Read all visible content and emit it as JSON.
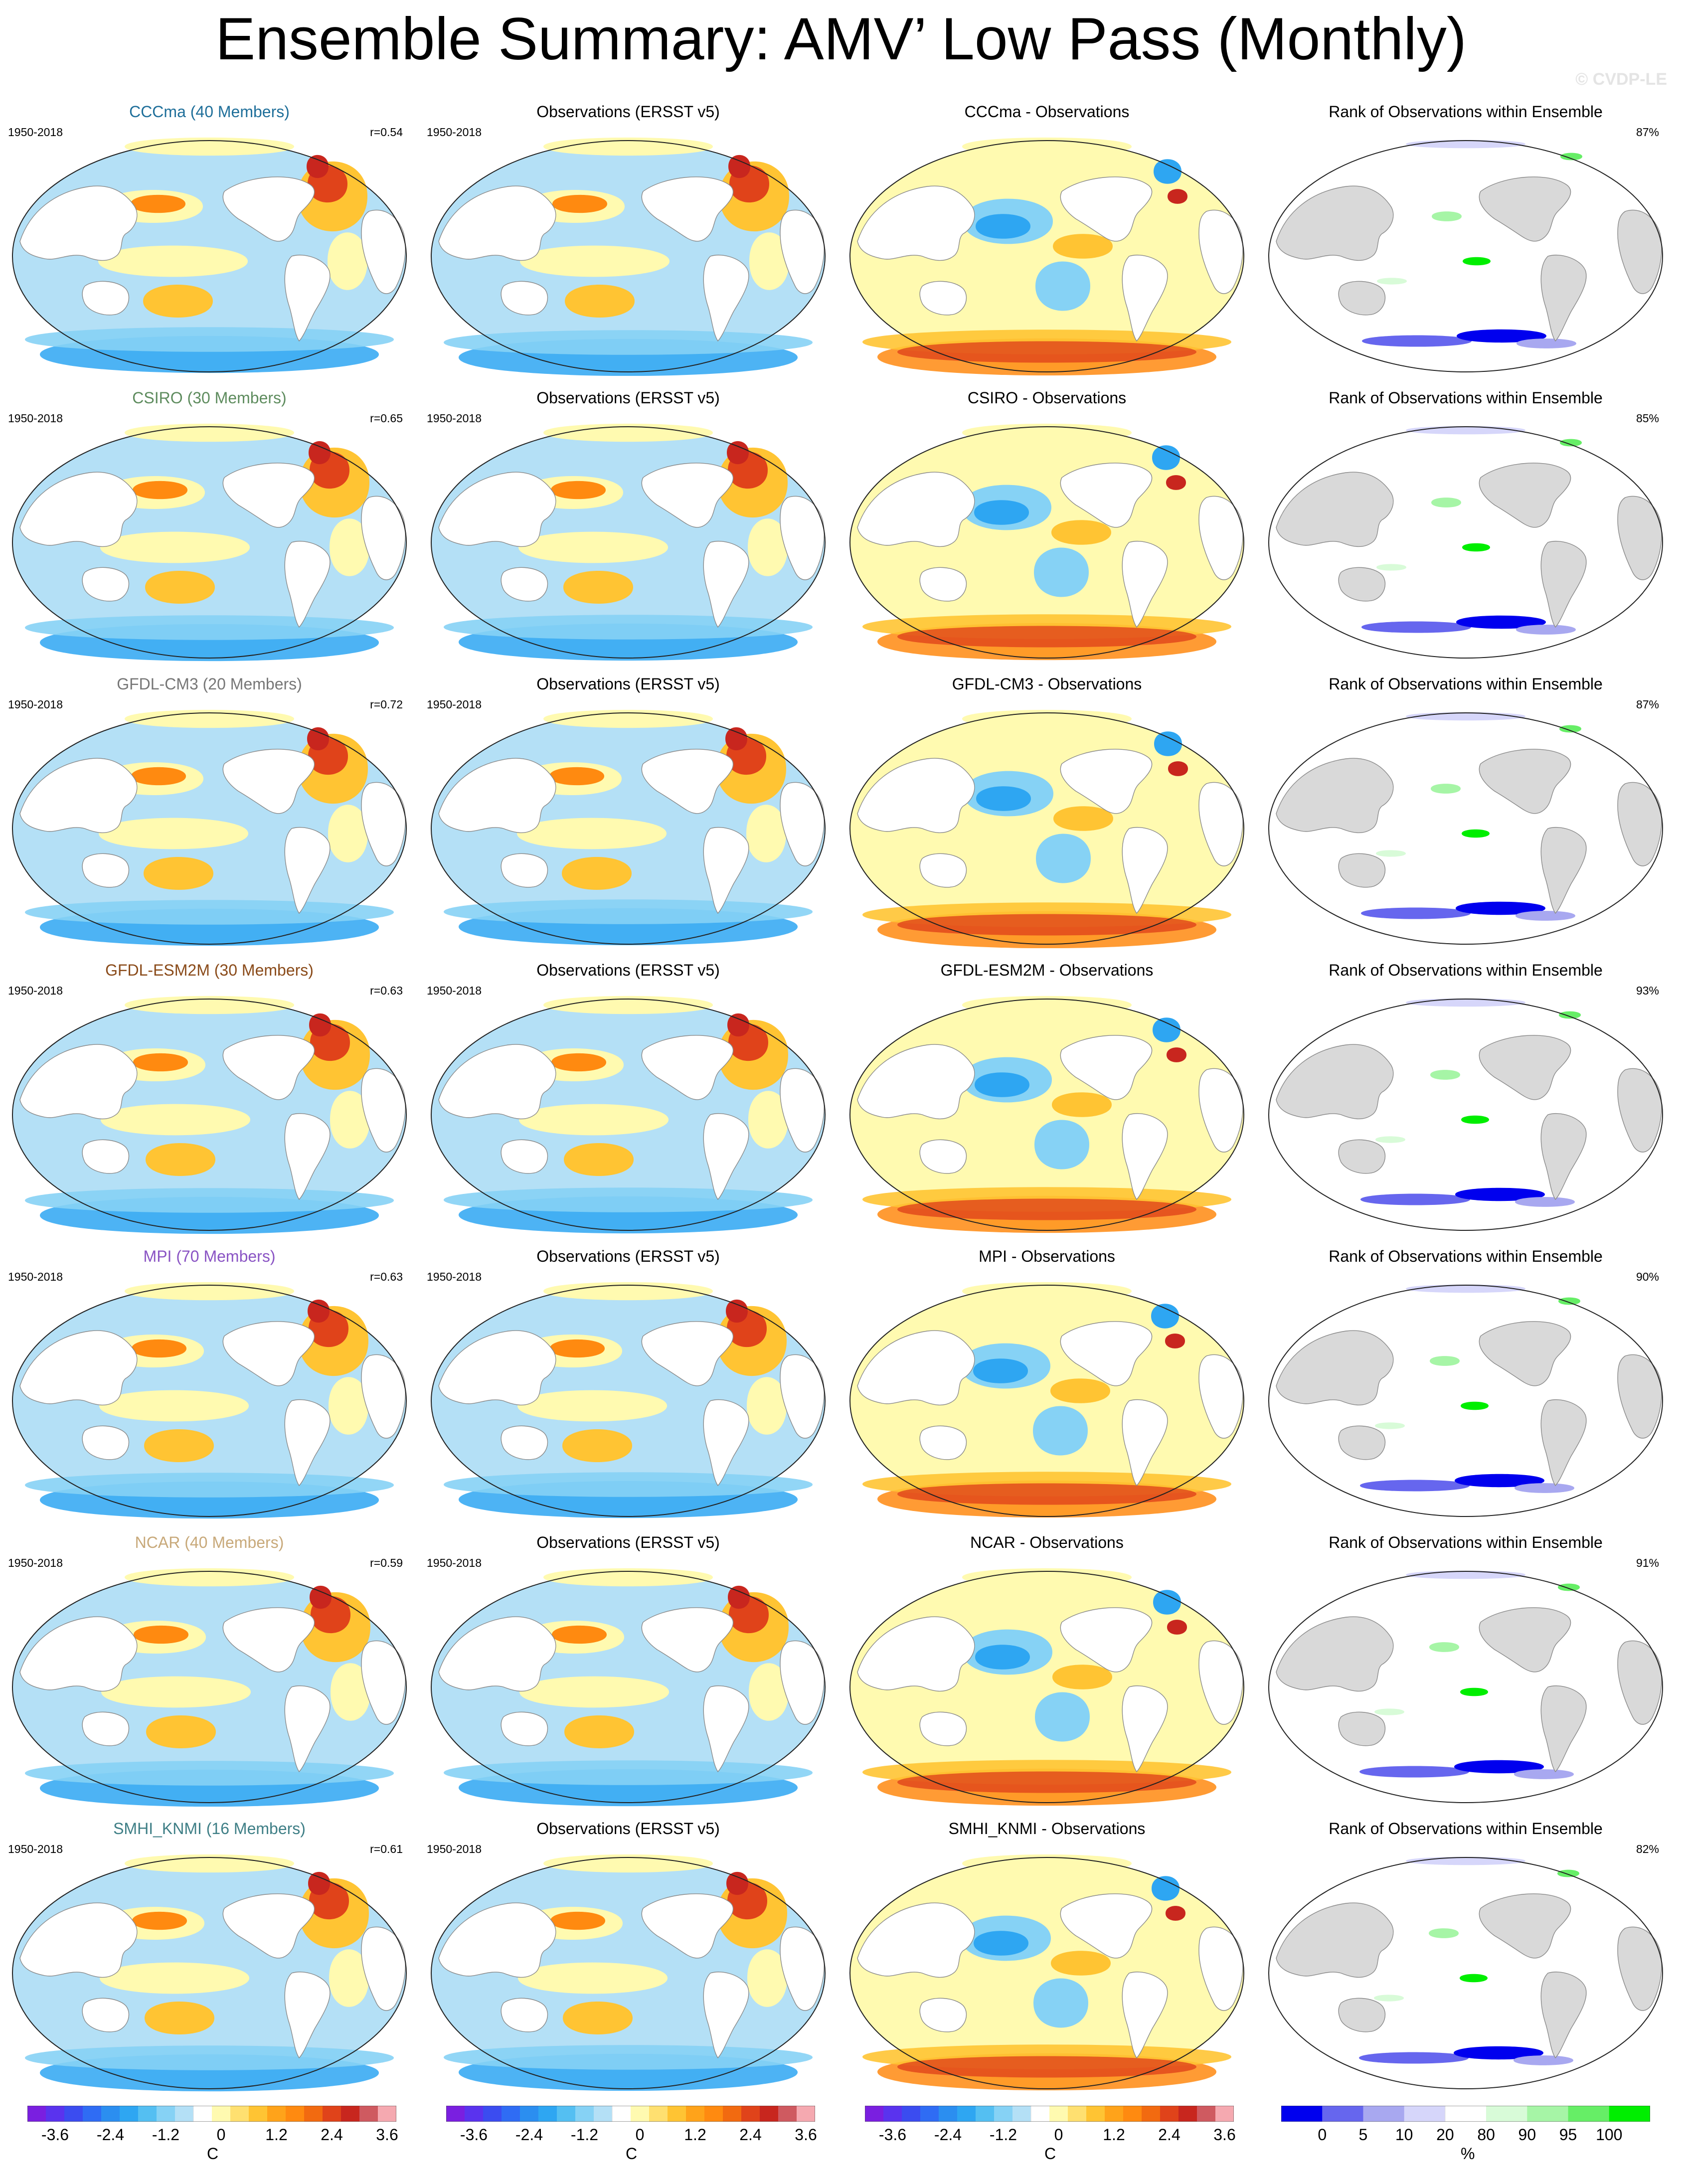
{
  "figure": {
    "title": "Ensemble Summary: AMV’ Low Pass (Monthly)",
    "watermark": "© CVDP-LE"
  },
  "chart_data": {
    "type": "heatmap",
    "title": "Ensemble Summary: AMV’ Low Pass (Monthly)",
    "rows": [
      {
        "model": "CCCma",
        "model_color": "#1f6f9a",
        "panels": [
          {
            "title": "CCCma (40 Members)",
            "years": "1950-2018",
            "stat": "r=0.54",
            "kind": "model"
          },
          {
            "title": "Observations (ERSST v5)",
            "years": "1950-2018",
            "stat": "",
            "kind": "obs"
          },
          {
            "title": "CCCma - Observations",
            "years": "",
            "stat": "",
            "kind": "diff"
          },
          {
            "title": "Rank of Observations within Ensemble",
            "years": "",
            "stat": "87%",
            "kind": "rank"
          }
        ]
      },
      {
        "model": "CSIRO",
        "model_color": "#5e8c5e",
        "panels": [
          {
            "title": "CSIRO (30 Members)",
            "years": "1950-2018",
            "stat": "r=0.65",
            "kind": "model"
          },
          {
            "title": "Observations (ERSST v5)",
            "years": "1950-2018",
            "stat": "",
            "kind": "obs"
          },
          {
            "title": "CSIRO - Observations",
            "years": "",
            "stat": "",
            "kind": "diff"
          },
          {
            "title": "Rank of Observations within Ensemble",
            "years": "",
            "stat": "85%",
            "kind": "rank"
          }
        ]
      },
      {
        "model": "GFDL-CM3",
        "model_color": "#777777",
        "panels": [
          {
            "title": "GFDL-CM3 (20 Members)",
            "years": "1950-2018",
            "stat": "r=0.72",
            "kind": "model"
          },
          {
            "title": "Observations (ERSST v5)",
            "years": "1950-2018",
            "stat": "",
            "kind": "obs"
          },
          {
            "title": "GFDL-CM3 - Observations",
            "years": "",
            "stat": "",
            "kind": "diff"
          },
          {
            "title": "Rank of Observations within Ensemble",
            "years": "",
            "stat": "87%",
            "kind": "rank"
          }
        ]
      },
      {
        "model": "GFDL-ESM2M",
        "model_color": "#8a4b1a",
        "panels": [
          {
            "title": "GFDL-ESM2M (30 Members)",
            "years": "1950-2018",
            "stat": "r=0.63",
            "kind": "model"
          },
          {
            "title": "Observations (ERSST v5)",
            "years": "1950-2018",
            "stat": "",
            "kind": "obs"
          },
          {
            "title": "GFDL-ESM2M - Observations",
            "years": "",
            "stat": "",
            "kind": "diff"
          },
          {
            "title": "Rank of Observations within Ensemble",
            "years": "",
            "stat": "93%",
            "kind": "rank"
          }
        ]
      },
      {
        "model": "MPI",
        "model_color": "#8a54c4",
        "panels": [
          {
            "title": "MPI (70 Members)",
            "years": "1950-2018",
            "stat": "r=0.63",
            "kind": "model"
          },
          {
            "title": "Observations (ERSST v5)",
            "years": "1950-2018",
            "stat": "",
            "kind": "obs"
          },
          {
            "title": "MPI - Observations",
            "years": "",
            "stat": "",
            "kind": "diff"
          },
          {
            "title": "Rank of Observations within Ensemble",
            "years": "",
            "stat": "90%",
            "kind": "rank"
          }
        ]
      },
      {
        "model": "NCAR",
        "model_color": "#c8a97a",
        "panels": [
          {
            "title": "NCAR (40 Members)",
            "years": "1950-2018",
            "stat": "r=0.59",
            "kind": "model"
          },
          {
            "title": "Observations (ERSST v5)",
            "years": "1950-2018",
            "stat": "",
            "kind": "obs"
          },
          {
            "title": "NCAR - Observations",
            "years": "",
            "stat": "",
            "kind": "diff"
          },
          {
            "title": "Rank of Observations within Ensemble",
            "years": "",
            "stat": "91%",
            "kind": "rank"
          }
        ]
      },
      {
        "model": "SMHI_KNMI",
        "model_color": "#3f7f86",
        "panels": [
          {
            "title": "SMHI_KNMI (16 Members)",
            "years": "1950-2018",
            "stat": "r=0.61",
            "kind": "model"
          },
          {
            "title": "Observations (ERSST v5)",
            "years": "1950-2018",
            "stat": "",
            "kind": "obs"
          },
          {
            "title": "SMHI_KNMI - Observations",
            "years": "",
            "stat": "",
            "kind": "diff"
          },
          {
            "title": "Rank of Observations within Ensemble",
            "years": "",
            "stat": "82%",
            "kind": "rank"
          }
        ]
      }
    ],
    "colorbars": [
      {
        "unit": "C",
        "ticks": [
          "-3.6",
          "-2.4",
          "-1.2",
          "0",
          "1.2",
          "2.4",
          "3.6"
        ],
        "kind": "temp"
      },
      {
        "unit": "C",
        "ticks": [
          "-3.6",
          "-2.4",
          "-1.2",
          "0",
          "1.2",
          "2.4",
          "3.6"
        ],
        "kind": "temp"
      },
      {
        "unit": "C",
        "ticks": [
          "-3.6",
          "-2.4",
          "-1.2",
          "0",
          "1.2",
          "2.4",
          "3.6"
        ],
        "kind": "temp"
      },
      {
        "unit": "%",
        "ticks": [
          "0",
          "5",
          "10",
          "20",
          "80",
          "90",
          "95",
          "100"
        ],
        "kind": "rank"
      }
    ],
    "temp_palette": [
      "#7a1fe0",
      "#5a33ee",
      "#3b4cf0",
      "#2f6cf4",
      "#2b8ef0",
      "#2ea6f2",
      "#54bff2",
      "#86d2f5",
      "#b4e0f6",
      "#ffffff",
      "#fffab0",
      "#ffe070",
      "#ffc433",
      "#ffa31a",
      "#ff8a10",
      "#f26a10",
      "#e0431a",
      "#c8261e",
      "#cf5a60",
      "#f5a9b0"
    ],
    "rank_palette": [
      "#0000ee",
      "#6666ee",
      "#a8a8f0",
      "#d6d6fa",
      "#ffffff",
      "#d8fbd8",
      "#a6f5a6",
      "#66ee66",
      "#00ee00"
    ]
  }
}
